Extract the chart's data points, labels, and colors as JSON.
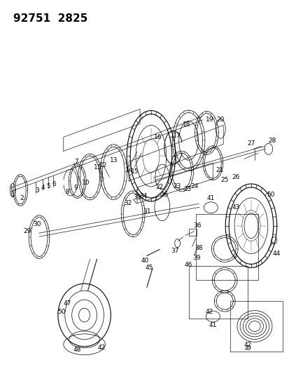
{
  "title": "92751  2825",
  "bg_color": "#ffffff",
  "line_color": "#1a1a1a",
  "text_color": "#000000",
  "lw_thin": 0.5,
  "lw_med": 0.8,
  "lw_thick": 1.1,
  "label_fs": 6.5
}
